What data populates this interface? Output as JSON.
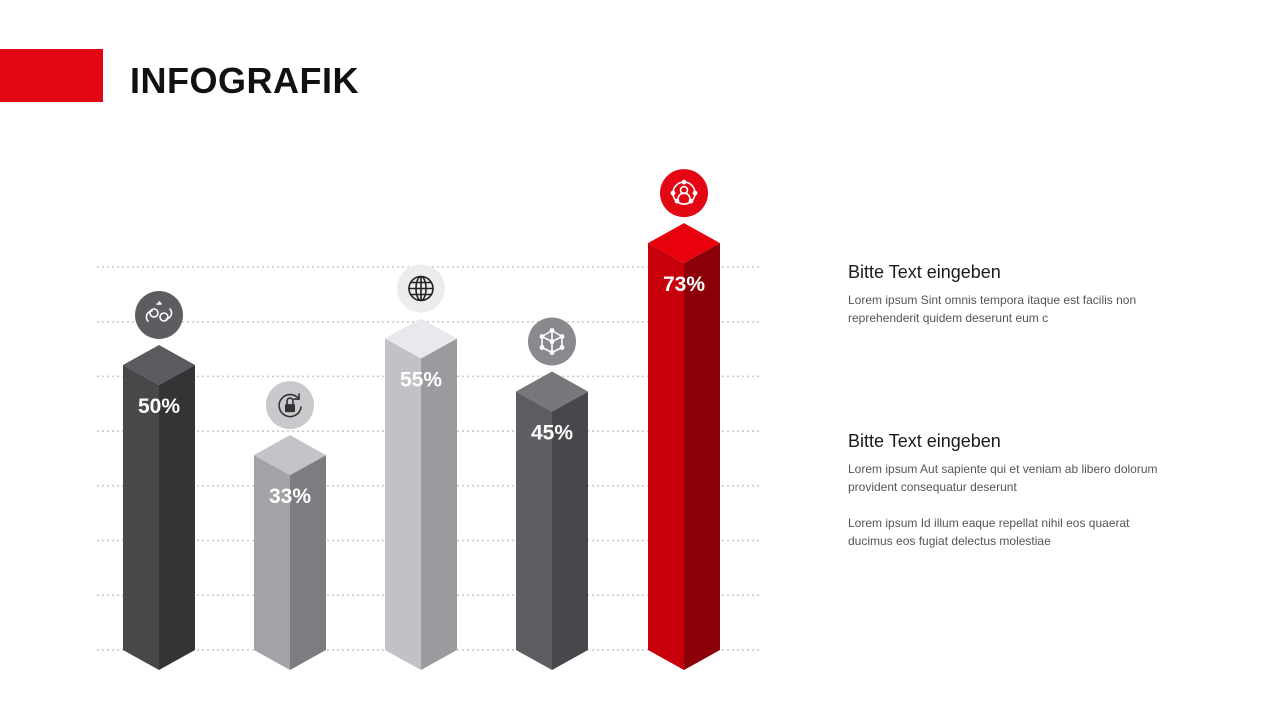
{
  "header": {
    "title": "INFOGRAFIK"
  },
  "colors": {
    "accent": "#e30613",
    "gridline": "#c8c8c8"
  },
  "chart_data": {
    "type": "bar",
    "title": "",
    "xlabel": "",
    "ylabel": "",
    "ylim": [
      0,
      80
    ],
    "grid": true,
    "categories": [],
    "values": [
      50,
      33,
      55,
      45,
      73
    ],
    "labels": [
      "50%",
      "33%",
      "55%",
      "45%",
      "73%"
    ],
    "bar_colors": [
      {
        "left": "#48474a",
        "right": "#343336",
        "top": "#5b5a5e",
        "icon_bg": "#5d5c60",
        "icon_fg": "#ffffff"
      },
      {
        "left": "#a3a2a6",
        "right": "#7d7c80",
        "top": "#c4c3c7",
        "icon_bg": "#c9c8cc",
        "icon_fg": "#333333"
      },
      {
        "left": "#c2c1c5",
        "right": "#9b9a9e",
        "top": "#e9e8ec",
        "icon_bg": "#ececee",
        "icon_fg": "#222222"
      },
      {
        "left": "#5e5d61",
        "right": "#48474b",
        "top": "#78777b",
        "icon_bg": "#8a898d",
        "icon_fg": "#ffffff"
      },
      {
        "left": "#c8000c",
        "right": "#8c0008",
        "top": "#e8000d",
        "icon_bg": "#e30613",
        "icon_fg": "#ffffff"
      }
    ],
    "icons": [
      "people-exchange-icon",
      "lock-refresh-icon",
      "globe-icon",
      "network-cube-icon",
      "connected-user-icon"
    ]
  },
  "text_blocks": [
    {
      "heading": "Bitte Text eingeben",
      "paragraphs": [
        "Lorem ipsum Sint omnis tempora itaque est facilis non reprehenderit quidem deserunt eum c"
      ]
    },
    {
      "heading": "Bitte Text eingeben",
      "paragraphs": [
        "Lorem ipsum Aut sapiente qui et veniam ab libero dolorum provident consequatur deserunt",
        "Lorem ipsum Id illum eaque repellat nihil eos quaerat ducimus eos fugiat delectus molestiae"
      ]
    }
  ]
}
